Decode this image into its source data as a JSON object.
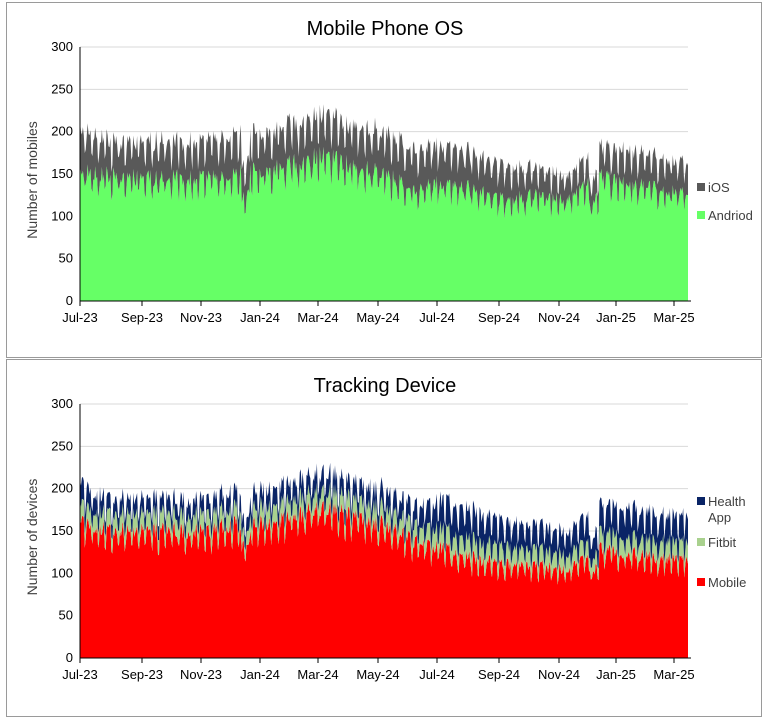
{
  "colors": {
    "ios": "#595959",
    "android": "#66ff66",
    "health_app": "#0a2466",
    "fitbit": "#a9d18e",
    "mobile": "#ff0000",
    "grid": "#d9d9d9",
    "axis": "#000000"
  },
  "chart_data": [
    {
      "type": "area",
      "stacked": true,
      "title": "Mobile Phone OS",
      "xlabel": "",
      "ylabel": "Number of mobiles",
      "ylim": [
        0,
        300
      ],
      "yticks": [
        "0",
        "50",
        "100",
        "150",
        "200",
        "250",
        "300"
      ],
      "x_tick_labels": [
        "Jul-23",
        "Sep-23",
        "Nov-23",
        "Jan-24",
        "Mar-24",
        "May-24",
        "Jul-24",
        "Sep-24",
        "Nov-24",
        "Jan-25",
        "Mar-25"
      ],
      "x_range": [
        "2023-07-01",
        "2025-03-31"
      ],
      "legend_position": "right",
      "monthly_approx": {
        "months": [
          "2023-07",
          "2023-08",
          "2023-09",
          "2023-10",
          "2023-11",
          "2023-12",
          "2024-01",
          "2024-02",
          "2024-03",
          "2024-04",
          "2024-05",
          "2024-06",
          "2024-07",
          "2024-08",
          "2024-09",
          "2024-10",
          "2024-11",
          "2024-12",
          "2025-01",
          "2025-02",
          "2025-03"
        ],
        "totals": [
          205,
          190,
          188,
          190,
          188,
          198,
          200,
          210,
          222,
          208,
          200,
          180,
          188,
          175,
          160,
          158,
          150,
          182,
          180,
          170,
          168
        ],
        "series": [
          {
            "name": "Andriod",
            "values": [
              155,
              148,
              145,
              146,
              145,
              150,
              155,
              162,
              172,
              160,
              150,
              132,
              142,
              132,
              120,
              125,
              122,
              148,
              140,
              132,
              132
            ]
          },
          {
            "name": "iOS",
            "values": [
              50,
              42,
              43,
              44,
              43,
              48,
              45,
              48,
              50,
              48,
              50,
              48,
              46,
              43,
              40,
              33,
              28,
              34,
              40,
              38,
              36
            ]
          }
        ]
      },
      "legend": [
        "iOS",
        "Andriod"
      ]
    },
    {
      "type": "area",
      "stacked": true,
      "title": "Tracking Device",
      "xlabel": "",
      "ylabel": "Number of devices",
      "ylim": [
        0,
        300
      ],
      "yticks": [
        "0",
        "50",
        "100",
        "150",
        "200",
        "250",
        "300"
      ],
      "x_tick_labels": [
        "Jul-23",
        "Sep-23",
        "Nov-23",
        "Jan-24",
        "Mar-24",
        "May-24",
        "Jul-24",
        "Sep-24",
        "Nov-24",
        "Jan-25",
        "Mar-25"
      ],
      "x_range": [
        "2023-07-01",
        "2025-03-31"
      ],
      "legend_position": "right",
      "monthly_approx": {
        "months": [
          "2023-07",
          "2023-08",
          "2023-09",
          "2023-10",
          "2023-11",
          "2023-12",
          "2024-01",
          "2024-02",
          "2024-03",
          "2024-04",
          "2024-05",
          "2024-06",
          "2024-07",
          "2024-08",
          "2024-09",
          "2024-10",
          "2024-11",
          "2024-12",
          "2025-01",
          "2025-02",
          "2025-03"
        ],
        "totals": [
          205,
          190,
          188,
          190,
          188,
          198,
          200,
          210,
          222,
          208,
          200,
          180,
          188,
          175,
          160,
          158,
          150,
          182,
          180,
          170,
          168
        ],
        "series": [
          {
            "name": "Mobile",
            "values": [
              160,
              152,
              150,
              152,
              150,
              158,
              160,
              168,
              180,
              168,
              158,
              138,
              130,
              118,
              110,
              110,
              105,
              130,
              125,
              118,
              118
            ]
          },
          {
            "name": "Fitbit",
            "values": [
              20,
              20,
              20,
              20,
              20,
              20,
              20,
              20,
              20,
              20,
              20,
              20,
              22,
              22,
              20,
              20,
              18,
              20,
              20,
              20,
              20
            ]
          },
          {
            "name": "Health App",
            "values": [
              25,
              18,
              18,
              18,
              18,
              20,
              20,
              22,
              22,
              20,
              22,
              22,
              36,
              35,
              30,
              28,
              27,
              32,
              35,
              32,
              30
            ]
          }
        ]
      },
      "legend": [
        "Health App",
        "Fitbit",
        "Mobile"
      ]
    }
  ]
}
